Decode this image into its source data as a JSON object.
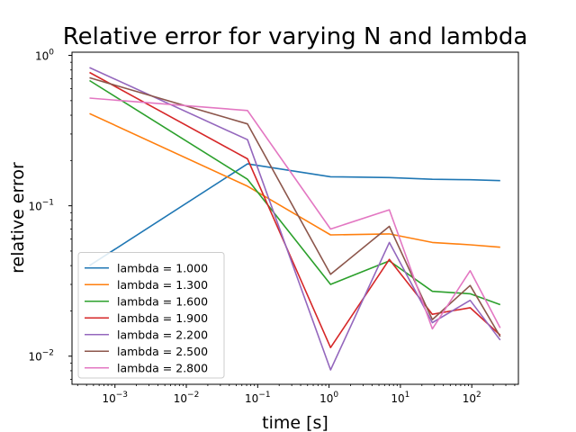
{
  "chart_data": {
    "type": "line",
    "title": "Relative error for varying N and lambda",
    "xlabel": "time [s]",
    "ylabel": "relative error",
    "xscale": "log",
    "yscale": "log",
    "xlim": [
      0.00025,
      450
    ],
    "ylim": [
      0.0065,
      1.05
    ],
    "xticks": [
      {
        "value": 0.001,
        "base": "10",
        "exp": "−3"
      },
      {
        "value": 0.01,
        "base": "10",
        "exp": "−2"
      },
      {
        "value": 0.1,
        "base": "10",
        "exp": "−1"
      },
      {
        "value": 1,
        "base": "10",
        "exp": "0"
      },
      {
        "value": 10,
        "base": "10",
        "exp": "1"
      },
      {
        "value": 100,
        "base": "10",
        "exp": "2"
      }
    ],
    "yticks": [
      {
        "value": 0.01,
        "base": "10",
        "exp": "−2"
      },
      {
        "value": 0.1,
        "base": "10",
        "exp": "−1"
      },
      {
        "value": 1,
        "base": "10",
        "exp": "0"
      }
    ],
    "grid": false,
    "legend_position": "lower-left",
    "series": [
      {
        "name": "lambda = 1.000",
        "color": "#1f77b4",
        "x": [
          0.00044,
          0.072,
          1.05,
          7.0,
          28,
          95,
          250
        ],
        "y": [
          0.04,
          0.19,
          0.156,
          0.154,
          0.15,
          0.149,
          0.147
        ]
      },
      {
        "name": "lambda = 1.300",
        "color": "#ff7f0e",
        "x": [
          0.00044,
          0.072,
          1.05,
          7.0,
          28,
          95,
          250
        ],
        "y": [
          0.41,
          0.135,
          0.064,
          0.065,
          0.057,
          0.055,
          0.053
        ]
      },
      {
        "name": "lambda = 1.600",
        "color": "#2ca02c",
        "x": [
          0.00044,
          0.072,
          1.05,
          7.0,
          28,
          95,
          250
        ],
        "y": [
          0.68,
          0.15,
          0.03,
          0.043,
          0.027,
          0.026,
          0.022
        ]
      },
      {
        "name": "lambda = 1.900",
        "color": "#d62728",
        "x": [
          0.00044,
          0.072,
          1.05,
          7.0,
          28,
          95,
          250
        ],
        "y": [
          0.77,
          0.205,
          0.0114,
          0.044,
          0.019,
          0.021,
          0.0138
        ]
      },
      {
        "name": "lambda = 2.200",
        "color": "#9467bd",
        "x": [
          0.00044,
          0.072,
          1.05,
          7.0,
          28,
          95,
          250
        ],
        "y": [
          0.83,
          0.275,
          0.0081,
          0.057,
          0.0167,
          0.0235,
          0.0128
        ]
      },
      {
        "name": "lambda = 2.500",
        "color": "#8c564b",
        "x": [
          0.00044,
          0.072,
          1.05,
          7.0,
          28,
          95,
          250
        ],
        "y": [
          0.71,
          0.35,
          0.035,
          0.073,
          0.0175,
          0.0295,
          0.0135
        ]
      },
      {
        "name": "lambda = 2.800",
        "color": "#e377c2",
        "x": [
          0.00044,
          0.072,
          1.05,
          7.0,
          28,
          95,
          250
        ],
        "y": [
          0.52,
          0.43,
          0.07,
          0.094,
          0.0152,
          0.037,
          0.0154
        ]
      }
    ]
  }
}
